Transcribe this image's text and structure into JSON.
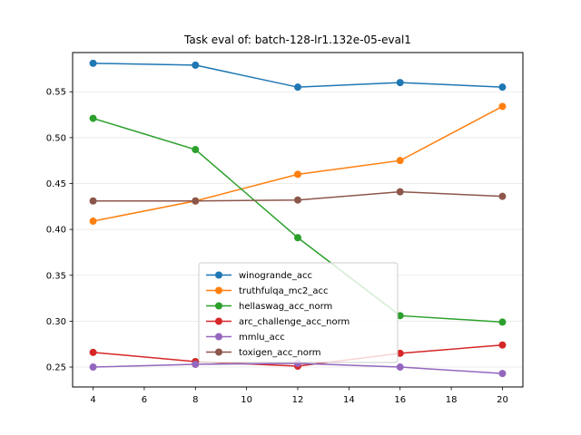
{
  "chart_data": {
    "type": "line",
    "title": "Task eval of: batch-128-lr1.132e-05-eval1",
    "xlabel": "",
    "ylabel": "",
    "x": [
      4,
      8,
      12,
      16,
      20
    ],
    "xlim": [
      3.2,
      20.8
    ],
    "ylim": [
      0.2283,
      0.5927
    ],
    "xticks": [
      4,
      6,
      8,
      10,
      12,
      14,
      16,
      18,
      20
    ],
    "yticks": [
      0.25,
      0.3,
      0.35,
      0.4,
      0.45,
      0.5,
      0.55
    ],
    "ytick_labels": [
      "0.25",
      "0.30",
      "0.35",
      "0.40",
      "0.45",
      "0.50",
      "0.55"
    ],
    "grid": "horizontal",
    "legend_position": "lower-center",
    "series": [
      {
        "name": "winogrande_acc",
        "color": "#1f77b4",
        "values": [
          0.581,
          0.579,
          0.555,
          0.56,
          0.555
        ]
      },
      {
        "name": "truthfulqa_mc2_acc",
        "color": "#ff7f0e",
        "values": [
          0.409,
          0.431,
          0.46,
          0.475,
          0.534
        ]
      },
      {
        "name": "hellaswag_acc_norm",
        "color": "#2ca02c",
        "values": [
          0.521,
          0.487,
          0.391,
          0.306,
          0.299
        ]
      },
      {
        "name": "arc_challenge_acc_norm",
        "color": "#d62728",
        "values": [
          0.266,
          0.256,
          0.251,
          0.265,
          0.274
        ]
      },
      {
        "name": "mmlu_acc",
        "color": "#9467bd",
        "values": [
          0.25,
          0.253,
          0.254,
          0.25,
          0.243
        ]
      },
      {
        "name": "toxigen_acc_norm",
        "color": "#8c564b",
        "values": [
          0.431,
          0.431,
          0.432,
          0.441,
          0.436
        ]
      }
    ]
  }
}
